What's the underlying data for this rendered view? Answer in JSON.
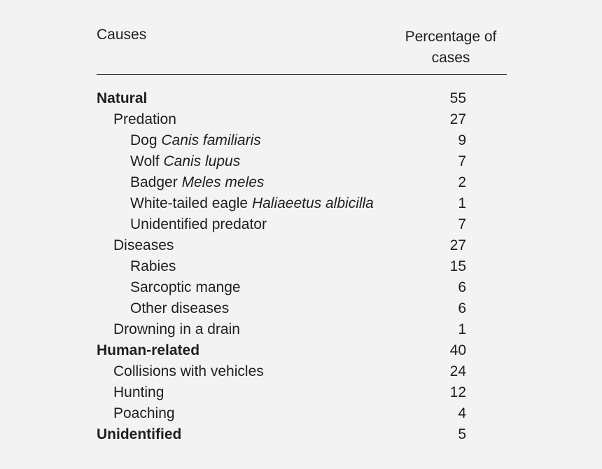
{
  "table": {
    "headers": {
      "cause": "Causes",
      "percentage": "Percentage of cases"
    },
    "rows": [
      {
        "label": "Natural",
        "scientific": "",
        "value": "55",
        "level": 0
      },
      {
        "label": "Predation",
        "scientific": "",
        "value": "27",
        "level": 1
      },
      {
        "label": "Dog",
        "scientific": "Canis familiaris",
        "value": "9",
        "level": 2
      },
      {
        "label": "Wolf",
        "scientific": "Canis lupus",
        "value": "7",
        "level": 2
      },
      {
        "label": "Badger",
        "scientific": "Meles meles",
        "value": "2",
        "level": 2
      },
      {
        "label": "White-tailed eagle",
        "scientific": "Haliaeetus albicilla",
        "value": "1",
        "level": 2
      },
      {
        "label": "Unidentified predator",
        "scientific": "",
        "value": "7",
        "level": 2
      },
      {
        "label": "Diseases",
        "scientific": "",
        "value": "27",
        "level": 1
      },
      {
        "label": "Rabies",
        "scientific": "",
        "value": "15",
        "level": 2
      },
      {
        "label": "Sarcoptic mange",
        "scientific": "",
        "value": "6",
        "level": 2
      },
      {
        "label": "Other diseases",
        "scientific": "",
        "value": "6",
        "level": 2
      },
      {
        "label": "Drowning in a drain",
        "scientific": "",
        "value": "1",
        "level": 1
      },
      {
        "label": "Human-related",
        "scientific": "",
        "value": "40",
        "level": 0
      },
      {
        "label": "Collisions with vehicles",
        "scientific": "",
        "value": "24",
        "level": 1
      },
      {
        "label": "Hunting",
        "scientific": "",
        "value": "12",
        "level": 1
      },
      {
        "label": "Poaching",
        "scientific": "",
        "value": "4",
        "level": 1
      },
      {
        "label": "Unidentified",
        "scientific": "",
        "value": "5",
        "level": 0
      }
    ]
  }
}
